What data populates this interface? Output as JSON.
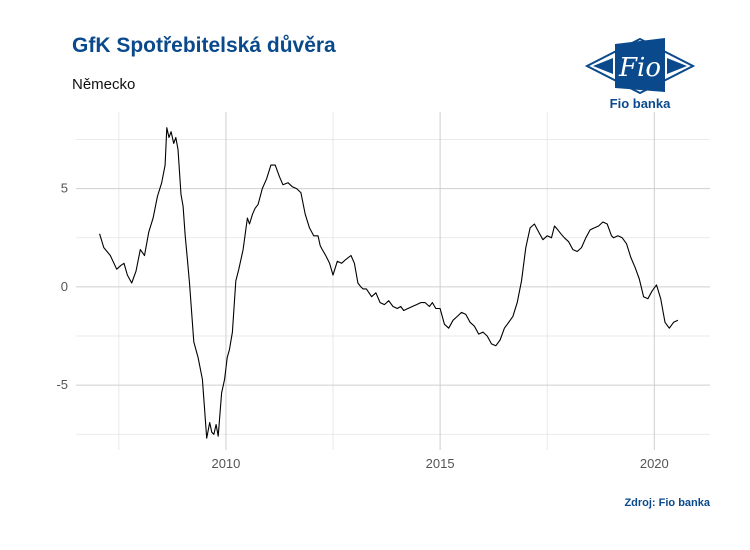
{
  "header": {
    "title": "GfK Spotřebitelská důvěra",
    "subtitle": "Německo"
  },
  "footer": {
    "source": "Zdroj: Fio banka"
  },
  "logo": {
    "text": "Fio banka",
    "mark_text": "Fio",
    "color": "#0a4a8c"
  },
  "chart_data": {
    "type": "line",
    "title": "GfK Spotřebitelská důvěra",
    "subtitle": "Německo",
    "xlabel": "",
    "ylabel": "",
    "xlim": [
      2006.5,
      2021.3
    ],
    "ylim": [
      -8.3,
      8.9
    ],
    "x_ticks": [
      2010,
      2015,
      2020
    ],
    "x_tick_labels": [
      "2010",
      "2015",
      "2020"
    ],
    "y_ticks": [
      -5,
      0,
      5
    ],
    "y_tick_labels": [
      "-5",
      "0",
      "5"
    ],
    "grid": true,
    "line_color": "#000000",
    "series": [
      {
        "x": [
          2007.05,
          2007.15,
          2007.3,
          2007.45,
          2007.55,
          2007.62,
          2007.7,
          2007.8,
          2007.9,
          2008.0,
          2008.1,
          2008.2,
          2008.3,
          2008.4,
          2008.5,
          2008.58,
          2008.62,
          2008.67,
          2008.72,
          2008.78,
          2008.83,
          2008.88,
          2008.95,
          2009.0,
          2009.05,
          2009.1,
          2009.15,
          2009.25,
          2009.35,
          2009.45,
          2009.55,
          2009.62,
          2009.67,
          2009.72,
          2009.77,
          2009.82,
          2009.9,
          2009.97,
          2010.03,
          2010.08,
          2010.15,
          2010.23,
          2010.3,
          2010.4,
          2010.5,
          2010.55,
          2010.62,
          2010.68,
          2010.75,
          2010.85,
          2010.95,
          2011.05,
          2011.15,
          2011.25,
          2011.33,
          2011.45,
          2011.55,
          2011.65,
          2011.75,
          2011.85,
          2011.95,
          2012.05,
          2012.15,
          2012.2,
          2012.25,
          2012.33,
          2012.42,
          2012.5,
          2012.6,
          2012.7,
          2012.8,
          2012.92,
          2013.0,
          2013.08,
          2013.15,
          2013.2,
          2013.28,
          2013.4,
          2013.5,
          2013.6,
          2013.7,
          2013.8,
          2013.9,
          2014.0,
          2014.08,
          2014.15,
          2014.25,
          2014.35,
          2014.45,
          2014.55,
          2014.65,
          2014.75,
          2014.82,
          2014.9,
          2015.0,
          2015.1,
          2015.2,
          2015.3,
          2015.4,
          2015.5,
          2015.6,
          2015.7,
          2015.8,
          2015.9,
          2016.0,
          2016.1,
          2016.2,
          2016.3,
          2016.4,
          2016.5,
          2016.6,
          2016.7,
          2016.8,
          2016.9,
          2017.0,
          2017.1,
          2017.2,
          2017.3,
          2017.4,
          2017.5,
          2017.6,
          2017.67,
          2017.75,
          2017.82,
          2017.9,
          2018.0,
          2018.1,
          2018.2,
          2018.3,
          2018.4,
          2018.5,
          2018.6,
          2018.7,
          2018.8,
          2018.9,
          2019.0,
          2019.05,
          2019.15,
          2019.25,
          2019.35,
          2019.45,
          2019.55,
          2019.65,
          2019.75,
          2019.85,
          2019.95,
          2020.05,
          2020.15,
          2020.25,
          2020.35,
          2020.45,
          2020.55
        ],
        "y": [
          2.7,
          2.0,
          1.6,
          0.9,
          1.1,
          1.2,
          0.6,
          0.2,
          0.8,
          1.9,
          1.6,
          2.8,
          3.5,
          4.6,
          5.3,
          6.2,
          8.1,
          7.6,
          7.9,
          7.3,
          7.6,
          7.0,
          4.7,
          4.1,
          2.6,
          1.4,
          0.2,
          -2.8,
          -3.6,
          -4.7,
          -7.7,
          -6.9,
          -7.4,
          -7.5,
          -7.0,
          -7.6,
          -5.4,
          -4.7,
          -3.6,
          -3.2,
          -2.3,
          0.3,
          0.9,
          1.9,
          3.5,
          3.2,
          3.7,
          4.0,
          4.2,
          5.0,
          5.5,
          6.2,
          6.2,
          5.6,
          5.2,
          5.3,
          5.1,
          5.0,
          4.8,
          3.7,
          3.0,
          2.6,
          2.6,
          2.1,
          1.9,
          1.6,
          1.2,
          0.6,
          1.3,
          1.2,
          1.4,
          1.6,
          1.2,
          0.2,
          0.0,
          -0.1,
          -0.1,
          -0.5,
          -0.3,
          -0.8,
          -0.9,
          -0.7,
          -1.0,
          -1.1,
          -1.0,
          -1.2,
          -1.1,
          -1.0,
          -0.9,
          -0.8,
          -0.8,
          -1.0,
          -0.8,
          -1.1,
          -1.1,
          -1.9,
          -2.1,
          -1.7,
          -1.5,
          -1.3,
          -1.4,
          -1.8,
          -2.0,
          -2.4,
          -2.3,
          -2.5,
          -2.9,
          -3.0,
          -2.7,
          -2.1,
          -1.8,
          -1.5,
          -0.8,
          0.3,
          2.0,
          3.0,
          3.2,
          2.8,
          2.4,
          2.6,
          2.5,
          3.1,
          2.9,
          2.7,
          2.5,
          2.3,
          1.9,
          1.8,
          2.0,
          2.5,
          2.9,
          3.0,
          3.1,
          3.3,
          3.2,
          2.6,
          2.5,
          2.6,
          2.5,
          2.2,
          1.5,
          1.0,
          0.4,
          -0.5,
          -0.6,
          -0.2,
          0.1,
          -0.6,
          -1.8,
          -2.1,
          -1.8,
          -1.7
        ]
      }
    ]
  }
}
